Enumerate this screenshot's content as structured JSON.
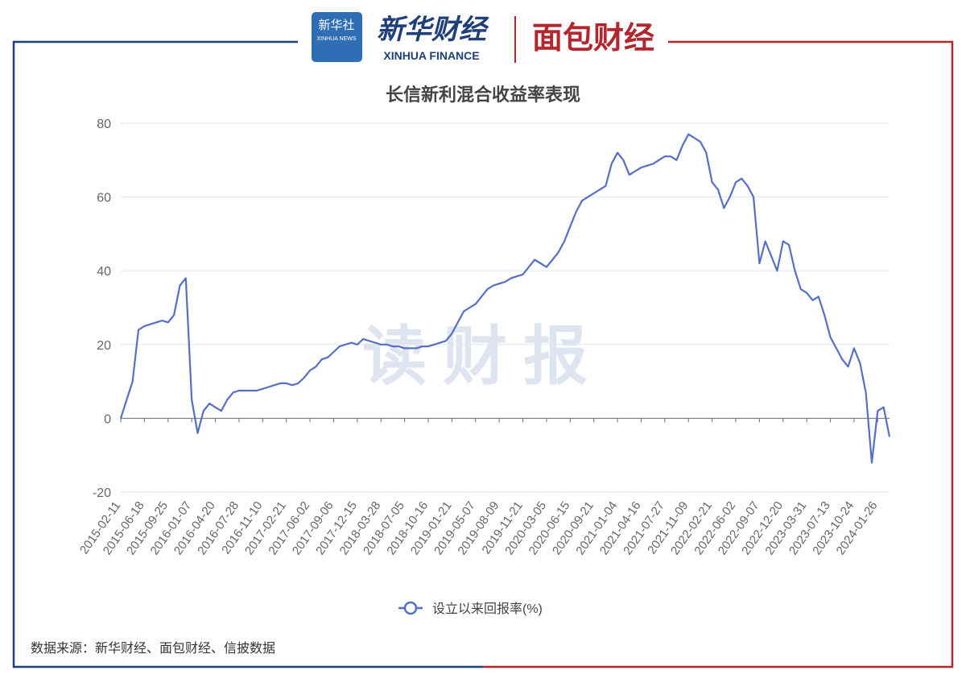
{
  "header": {
    "xinhua_news_cn": "新华社",
    "xinhua_news_en": "XINHUA NEWS",
    "xinhua_finance_cn": "新华财经",
    "xinhua_finance_en": "XINHUA FINANCE",
    "mianbao": "面包财经"
  },
  "chart_data": {
    "type": "line",
    "title": "长信新利混合收益率表现",
    "watermark": "读财报",
    "categories": [
      "2015-02-11",
      null,
      null,
      null,
      "2015-06-18",
      null,
      null,
      null,
      "2015-09-25",
      null,
      null,
      null,
      "2016-01-07",
      null,
      null,
      null,
      "2016-04-20",
      null,
      null,
      null,
      "2016-07-28",
      null,
      null,
      null,
      "2016-11-10",
      null,
      null,
      null,
      "2017-02-21",
      null,
      null,
      null,
      "2017-06-02",
      null,
      null,
      null,
      "2017-09-06",
      null,
      null,
      null,
      "2017-12-15",
      null,
      null,
      null,
      "2018-03-28",
      null,
      null,
      null,
      "2018-07-05",
      null,
      null,
      null,
      "2018-10-16",
      null,
      null,
      null,
      "2019-01-21",
      null,
      null,
      null,
      "2019-05-07",
      null,
      null,
      null,
      "2019-08-09",
      null,
      null,
      null,
      "2019-11-21",
      null,
      null,
      null,
      "2020-03-05",
      null,
      null,
      null,
      "2020-06-15",
      null,
      null,
      null,
      "2020-09-21",
      null,
      null,
      null,
      "2021-01-04",
      null,
      null,
      null,
      "2021-04-16",
      null,
      null,
      null,
      "2021-07-27",
      null,
      null,
      null,
      "2021-11-09",
      null,
      null,
      null,
      "2022-02-21",
      null,
      null,
      null,
      "2022-06-02",
      null,
      null,
      null,
      "2022-09-07",
      null,
      null,
      null,
      "2022-12-20",
      null,
      null,
      null,
      "2023-03-31",
      null,
      null,
      null,
      "2023-07-13",
      null,
      null,
      null,
      "2023-10-24",
      null,
      null,
      null,
      "2024-01-26",
      null,
      null
    ],
    "series": [
      {
        "name": "设立以来回报率(%)",
        "color": "#5470c6",
        "values": [
          0,
          5,
          10,
          24,
          25,
          25.5,
          26,
          26.5,
          26,
          28,
          36,
          38,
          5,
          -4,
          2,
          4,
          3,
          2,
          5,
          7,
          7.5,
          7.5,
          7.5,
          7.5,
          8,
          8.5,
          9,
          9.5,
          9.5,
          9,
          9.5,
          11,
          13,
          14,
          16,
          16.5,
          18,
          19.5,
          20,
          20.5,
          20,
          21.5,
          21,
          20.5,
          20,
          20,
          19.5,
          19.5,
          19,
          19,
          19,
          19.5,
          19.5,
          20,
          20.5,
          21,
          23,
          26,
          29,
          30,
          31,
          33,
          35,
          36,
          36.5,
          37,
          38,
          38.5,
          39,
          41,
          43,
          42,
          41,
          43,
          45,
          48,
          52,
          56,
          59,
          60,
          61,
          62,
          63,
          69,
          72,
          70,
          66,
          67,
          68,
          68.5,
          69,
          70,
          71,
          71,
          70,
          74,
          77,
          76,
          75,
          72,
          64,
          62,
          57,
          60,
          64,
          65,
          63,
          60,
          42,
          48,
          44,
          40,
          48,
          47,
          40,
          35,
          34,
          32,
          33,
          28,
          22,
          19,
          16,
          14,
          19,
          15,
          7,
          -12,
          2,
          3,
          -5
        ]
      }
    ],
    "ylim": [
      -20,
      80
    ],
    "yticks": [
      -20,
      0,
      20,
      40,
      60,
      80
    ],
    "grid": true,
    "legend": "bottom"
  },
  "footer": {
    "source": "数据来源：新华财经、面包财经、信披数据"
  }
}
